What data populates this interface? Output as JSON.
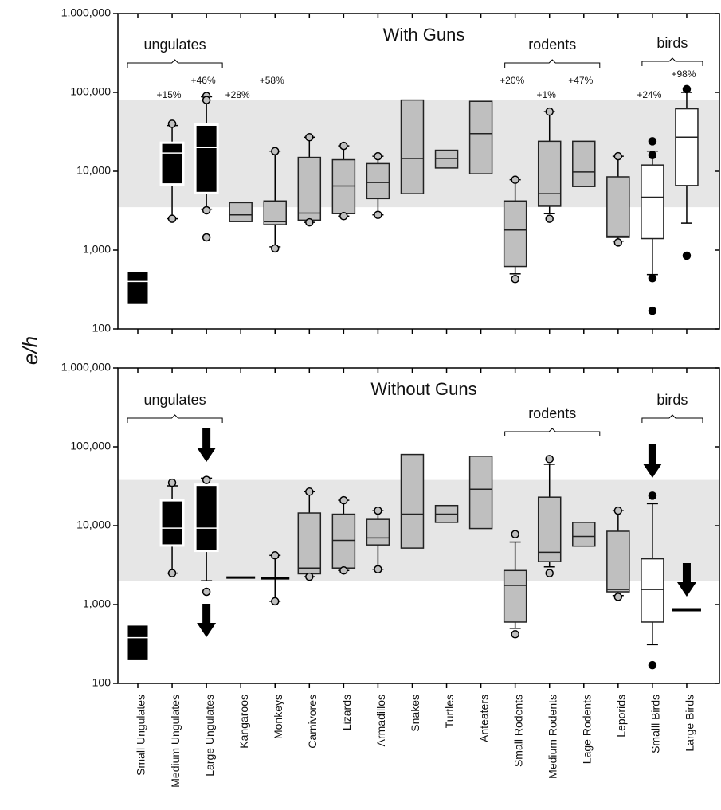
{
  "chart_data": [
    {
      "type": "box",
      "title": "With Guns",
      "ylabel": "e/h",
      "log_scale": true,
      "ylim": [
        100,
        1000000
      ],
      "yticks": [
        {
          "value": 1000000,
          "label": "1,000,000"
        },
        {
          "value": 100000,
          "label": "100,000"
        },
        {
          "value": 10000,
          "label": "10,000"
        },
        {
          "value": 1000,
          "label": "1,000"
        },
        100
      ],
      "shaded_range": [
        3500,
        80000
      ],
      "shade_color": "#e6e6e6",
      "box_color": "#bfbfbf",
      "outlier_color": "#bfbfbf",
      "groups": [
        "ungulates",
        "rodents",
        "birds"
      ],
      "boxes": [
        {
          "q1": 200,
          "median": 400,
          "q3": 540,
          "color": "#000000"
        },
        {
          "low": 2500,
          "q1": 6800,
          "median": 17000,
          "q3": 23000,
          "high": 38000,
          "outliers": [
            40000,
            2500
          ],
          "color": "#000000",
          "note": "+15%"
        },
        {
          "low": 3300,
          "q1": 5300,
          "median": 20000,
          "q3": 39000,
          "high": 88000,
          "outliers": [
            90000,
            80000,
            3200,
            1450
          ],
          "color": "#000000",
          "note": "+46%"
        },
        {
          "q1": 2300,
          "median": 2800,
          "q3": 4000,
          "note": "+28%"
        },
        {
          "low": 1100,
          "q1": 2100,
          "median": 2300,
          "q3": 4200,
          "high": 18000,
          "outliers": [
            18000,
            1050
          ],
          "note": "+58%"
        },
        {
          "low": 2250,
          "q1": 2400,
          "median": 2950,
          "q3": 15000,
          "high": 27000,
          "outliers": [
            27000,
            2250
          ]
        },
        {
          "low": 2700,
          "q1": 2900,
          "median": 6500,
          "q3": 14000,
          "high": 21000,
          "outliers": [
            21000,
            2700
          ]
        },
        {
          "low": 2800,
          "q1": 4500,
          "median": 7200,
          "q3": 12500,
          "high": 15500,
          "outliers": [
            15500,
            2800
          ]
        },
        {
          "q1": 5200,
          "median": 14500,
          "q3": 80000
        },
        {
          "q1": 11000,
          "median": 14500,
          "q3": 18500
        },
        {
          "q1": 9300,
          "median": 30000,
          "q3": 77000
        },
        {
          "low": 500,
          "q1": 620,
          "median": 1800,
          "q3": 4200,
          "high": 7800,
          "outliers": [
            7800,
            430
          ],
          "note": "+20%"
        },
        {
          "low": 2900,
          "q1": 3600,
          "median": 5200,
          "q3": 24000,
          "high": 57000,
          "outliers": [
            57000,
            2500
          ],
          "note": "+1%"
        },
        {
          "q1": 6400,
          "median": 9800,
          "q3": 24000,
          "note": "+47%"
        },
        {
          "low": 1300,
          "q1": 1450,
          "median": 1500,
          "q3": 8500,
          "high": 15500,
          "outliers": [
            15500,
            1250
          ]
        },
        {
          "low": 490,
          "q1": 1400,
          "median": 4700,
          "q3": 12000,
          "high": 18000,
          "outliers": [
            24000,
            16000,
            440,
            170
          ],
          "color": "#ffffff",
          "outlier_color": "#000000",
          "note": "+24%"
        },
        {
          "low": 2200,
          "q1": 6600,
          "median": 27000,
          "q3": 62000,
          "high": 100000,
          "outliers": [
            110000,
            850
          ],
          "color": "#ffffff",
          "outlier_color": "#000000",
          "note": "+98%"
        }
      ]
    },
    {
      "type": "box",
      "title": "Without Guns",
      "log_scale": true,
      "ylim": [
        100,
        1000000
      ],
      "yticks": [
        {
          "value": 1000000,
          "label": "1,000,000"
        },
        {
          "value": 100000,
          "label": "100,000"
        },
        {
          "value": 10000,
          "label": "10,000"
        },
        {
          "value": 1000,
          "label": "1,000"
        },
        100
      ],
      "shaded_range": [
        2000,
        38000
      ],
      "shade_color": "#e6e6e6",
      "box_color": "#bfbfbf",
      "outlier_color": "#bfbfbf",
      "groups": [
        "ungulates",
        "rodents",
        "birds"
      ],
      "categories": [
        "Small Ungulates",
        "Medium Ungulates",
        "Large Ungulates",
        "Kangaroos",
        "Monkeys",
        "Carnivores",
        "Lizards",
        "Armadillos",
        "Snakes",
        "Turtles",
        "Anteaters",
        "Small Rodents",
        "Medium Rodents",
        "Lage Rodents",
        "Leporids",
        "Smalll Birds",
        "Large Birds"
      ],
      "boxes": [
        {
          "q1": 190,
          "median": 380,
          "q3": 560,
          "color": "#000000"
        },
        {
          "low": 2500,
          "q1": 5600,
          "median": 9300,
          "q3": 21000,
          "high": 32000,
          "outliers": [
            35000,
            2500
          ],
          "color": "#000000"
        },
        {
          "low": 2000,
          "q1": 4800,
          "median": 9300,
          "q3": 33000,
          "high": 40000,
          "outliers": [
            38000,
            1450
          ],
          "color": "#000000"
        },
        {
          "q1": 2200,
          "median": 2200,
          "q3": 2200
        },
        {
          "low": 1100,
          "q1": 2150,
          "median": 2150,
          "q3": 2150,
          "high": 4200,
          "outliers": [
            4200,
            1100
          ]
        },
        {
          "low": 2250,
          "q1": 2450,
          "median": 2900,
          "q3": 14500,
          "high": 27000,
          "outliers": [
            27000,
            2250
          ]
        },
        {
          "low": 2700,
          "q1": 2900,
          "median": 6500,
          "q3": 14000,
          "high": 21000,
          "outliers": [
            21000,
            2700
          ]
        },
        {
          "low": 2800,
          "q1": 5700,
          "median": 7000,
          "q3": 12000,
          "high": 15500,
          "outliers": [
            15500,
            2800
          ]
        },
        {
          "q1": 5200,
          "median": 14000,
          "q3": 80000
        },
        {
          "q1": 11000,
          "median": 14000,
          "q3": 18000
        },
        {
          "q1": 9200,
          "median": 29000,
          "q3": 76000
        },
        {
          "low": 500,
          "q1": 600,
          "median": 1750,
          "q3": 2700,
          "high": 6200,
          "outliers": [
            7800,
            420
          ]
        },
        {
          "low": 3000,
          "q1": 3500,
          "median": 4600,
          "q3": 23000,
          "high": 60000,
          "outliers": [
            70000,
            2500
          ]
        },
        {
          "q1": 5500,
          "median": 7300,
          "q3": 11000
        },
        {
          "low": 1300,
          "q1": 1450,
          "median": 1550,
          "q3": 8500,
          "high": 15500,
          "outliers": [
            15500,
            1250
          ]
        },
        {
          "low": 310,
          "q1": 600,
          "median": 1550,
          "q3": 3800,
          "high": 19000,
          "outliers": [
            24000,
            170
          ],
          "color": "#ffffff",
          "outlier_color": "#000000"
        },
        {
          "q1": 850,
          "median": 850,
          "q3": 850,
          "color": "#000000"
        }
      ]
    }
  ]
}
